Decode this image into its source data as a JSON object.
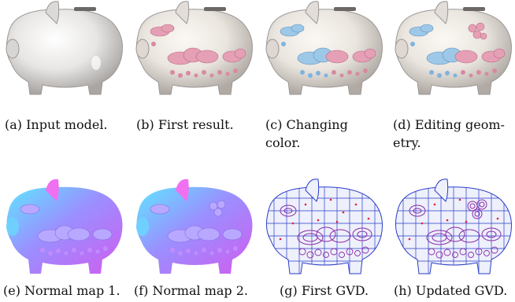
{
  "figures": [
    {
      "id": "a",
      "caption": "(a) Input model."
    },
    {
      "id": "b",
      "caption": "(b) First result."
    },
    {
      "id": "c",
      "caption_line1": "(c)    Changing",
      "caption_line2": "color."
    },
    {
      "id": "d",
      "caption_line1": "(d) Editing geom-",
      "caption_line2": "etry."
    },
    {
      "id": "e",
      "caption": "(e) Normal map 1."
    },
    {
      "id": "f",
      "caption": "(f) Normal map 2."
    },
    {
      "id": "g",
      "caption": "(g) First GVD."
    },
    {
      "id": "h",
      "caption": "(h) Updated GVD."
    }
  ],
  "colors": {
    "pig_base": "#ebe6e2",
    "pig_shadow": "#b8b2ad",
    "decal_pink": "#e8a0b4",
    "decal_blue": "#9cc7e6",
    "normal_magenta": "#c070ff",
    "normal_cyan": "#4fe0ff",
    "mesh_blue": "#2a3cc8",
    "mesh_purple": "#8a2aa8",
    "vertex_red": "#e0203a"
  }
}
